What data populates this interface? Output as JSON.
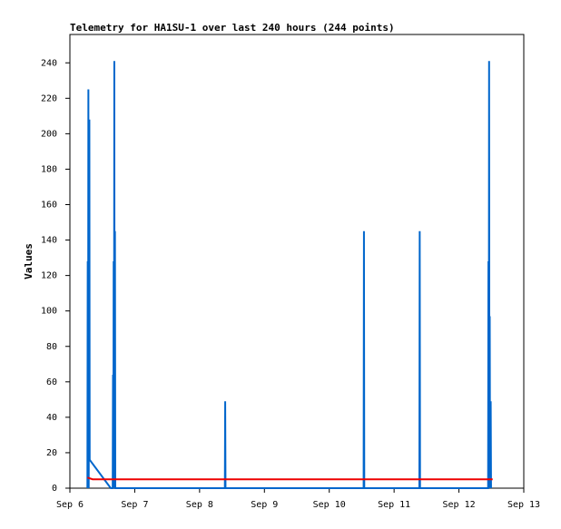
{
  "chart_data": {
    "type": "line",
    "title": "Telemetry for HA1SU-1 over last 240 hours (244 points)",
    "y_label": "Values",
    "xlim": [
      0,
      7
    ],
    "xticks": [
      {
        "value": 0,
        "label": "Sep 6"
      },
      {
        "value": 1,
        "label": "Sep 7"
      },
      {
        "value": 2,
        "label": "Sep 8"
      },
      {
        "value": 3,
        "label": "Sep 9"
      },
      {
        "value": 4,
        "label": "Sep 10"
      },
      {
        "value": 5,
        "label": "Sep 11"
      },
      {
        "value": 6,
        "label": "Sep 12"
      },
      {
        "value": 7,
        "label": "Sep 13"
      }
    ],
    "ylim": [
      0,
      256
    ],
    "yticks": [
      0,
      20,
      40,
      60,
      80,
      100,
      120,
      140,
      160,
      180,
      200,
      220,
      240
    ],
    "series": [
      {
        "color": "#0066cc",
        "x": [
          0.27,
          0.275,
          0.28,
          0.285,
          0.29,
          0.3,
          0.305,
          0.63,
          0.66,
          0.665,
          0.67,
          0.675,
          0.68,
          0.685,
          0.69,
          0.695,
          0.7,
          2.39,
          2.395,
          2.4,
          4.53,
          4.535,
          4.54,
          5.39,
          5.395,
          5.4,
          6.45,
          6.455,
          6.46,
          6.465,
          6.47,
          6.475,
          6.48,
          6.49,
          6.495
        ],
        "values": [
          0,
          128,
          0,
          225,
          0,
          208,
          16,
          0,
          0,
          64,
          0,
          128,
          0,
          241,
          0,
          145,
          0,
          0,
          49,
          0,
          0,
          145,
          0,
          0,
          145,
          0,
          0,
          128,
          0,
          241,
          0,
          97,
          0,
          49,
          0
        ]
      },
      {
        "color": "#ee0000",
        "x": [
          0.27,
          0.35,
          6.52
        ],
        "values": [
          6,
          5,
          5
        ]
      }
    ]
  }
}
